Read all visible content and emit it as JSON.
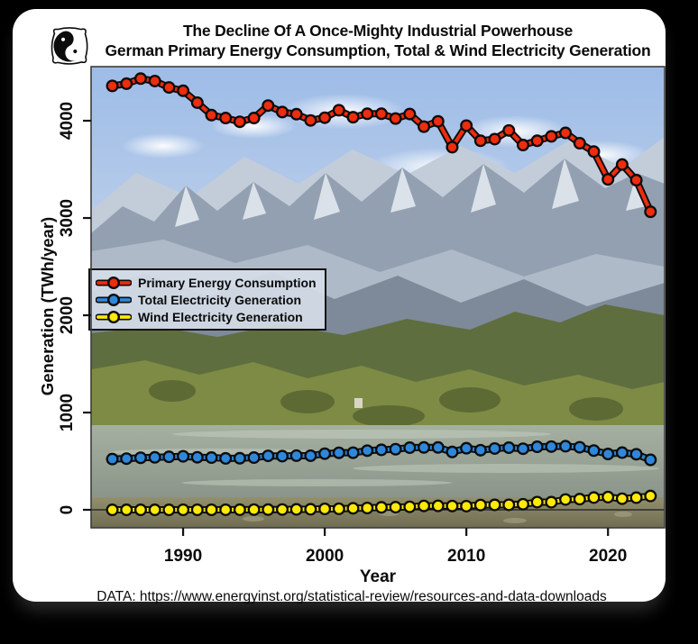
{
  "header": {
    "title_line1": "The Decline Of A Once-Mighty Industrial Powerhouse",
    "title_line2": "German Primary Energy Consumption, Total & Wind Electricity Generation",
    "logo_icon": "yin-yang-birds"
  },
  "caption": "DATA: https://www.energyinst.org/statistical-review/resources-and-data-downloads",
  "chart_data": {
    "type": "line",
    "title": "The Decline Of A Once-Mighty Industrial Powerhouse — German Primary Energy Consumption, Total & Wind Electricity Generation",
    "xlabel": "Year",
    "ylabel": "Generation (TWh/year)",
    "xlim": [
      1983.5,
      2024.0
    ],
    "ylim": [
      -185,
      4556
    ],
    "x_ticks": [
      1990,
      2000,
      2010,
      2020
    ],
    "y_ticks": [
      0,
      1000,
      2000,
      3000,
      4000
    ],
    "grid": false,
    "zero_line": true,
    "legend_position": "middle-left",
    "marker": "circle",
    "x": [
      1985,
      1986,
      1987,
      1988,
      1989,
      1990,
      1991,
      1992,
      1993,
      1994,
      1995,
      1996,
      1997,
      1998,
      1999,
      2000,
      2001,
      2002,
      2003,
      2004,
      2005,
      2006,
      2007,
      2008,
      2009,
      2010,
      2011,
      2012,
      2013,
      2014,
      2015,
      2016,
      2017,
      2018,
      2019,
      2020,
      2021,
      2022,
      2023
    ],
    "series": [
      {
        "name": "Primary Energy Consumption",
        "color": "#ee2c0e",
        "values": [
          4358,
          4381,
          4433,
          4408,
          4342,
          4308,
          4186,
          4058,
          4028,
          3989,
          4028,
          4156,
          4089,
          4067,
          4003,
          4031,
          4108,
          4036,
          4072,
          4072,
          4022,
          4069,
          3939,
          3994,
          3728,
          3950,
          3794,
          3811,
          3900,
          3750,
          3794,
          3839,
          3875,
          3769,
          3683,
          3397,
          3550,
          3389,
          3064
        ]
      },
      {
        "name": "Total Electricity Generation",
        "color": "#2f87da",
        "values": [
          522,
          526,
          535,
          539,
          545,
          550,
          540,
          537,
          529,
          530,
          537,
          555,
          552,
          557,
          556,
          577,
          586,
          587,
          608,
          617,
          623,
          639,
          641,
          641,
          595,
          633,
          613,
          630,
          639,
          628,
          648,
          650,
          654,
          643,
          609,
          574,
          588,
          571,
          514
        ]
      },
      {
        "name": "Wind Electricity Generation",
        "color": "#ffe90a",
        "values": [
          0,
          0,
          0,
          0,
          0,
          0.1,
          0.1,
          0.3,
          0.7,
          0.9,
          1.5,
          2,
          2.7,
          4.5,
          5.5,
          9.5,
          10.5,
          15.8,
          18.7,
          25.5,
          27.2,
          30.7,
          39.7,
          40.6,
          38.6,
          37.8,
          48.9,
          50.7,
          51.7,
          57.4,
          79.2,
          78.6,
          106,
          110,
          126,
          131,
          114,
          125,
          142
        ]
      }
    ]
  }
}
